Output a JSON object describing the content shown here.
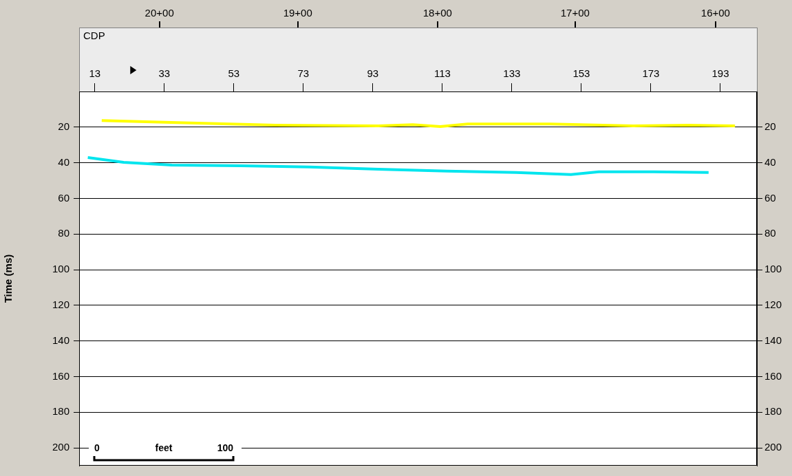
{
  "chart_data": {
    "type": "line",
    "x_label": "CDP",
    "y_label": "Time (ms)",
    "xlim": [
      8.5,
      203.5
    ],
    "xticks": [
      13,
      33,
      53,
      73,
      93,
      113,
      133,
      153,
      173,
      193
    ],
    "x2lim": [
      8.5,
      203.5
    ],
    "x2ticks": [
      {
        "value": 31.6,
        "label": "20+00"
      },
      {
        "value": 71.4,
        "label": "19+00"
      },
      {
        "value": 111.6,
        "label": "18+00"
      },
      {
        "value": 151.2,
        "label": "17+00"
      },
      {
        "value": 191.6,
        "label": "16+00"
      }
    ],
    "ylim": [
      0,
      210
    ],
    "yticks": [
      20,
      40,
      60,
      80,
      100,
      120,
      140,
      160,
      180,
      200
    ],
    "grid": true,
    "pointer_x": 24,
    "scale_bar": {
      "start": 0,
      "end": 100,
      "label": "feet"
    },
    "series": [
      {
        "color": "#ffff00",
        "x": [
          15,
          35,
          65,
          94.6,
          104.5,
          112.4,
          120.3,
          144,
          167.9,
          183.7,
          197.2
        ],
        "values": [
          16.3,
          17.4,
          18.9,
          19.3,
          18.6,
          19.7,
          18.2,
          18.2,
          19.3,
          18.9,
          19.3
        ]
      },
      {
        "color": "#00e5ee",
        "x": [
          11,
          21.3,
          35.2,
          55,
          74.8,
          94.6,
          114.4,
          134.2,
          150,
          158,
          173.8,
          189.6
        ],
        "values": [
          37.1,
          39.8,
          41.3,
          41.7,
          42.4,
          43.6,
          44.7,
          45.5,
          46.6,
          45.1,
          45.1,
          45.5
        ]
      }
    ]
  }
}
